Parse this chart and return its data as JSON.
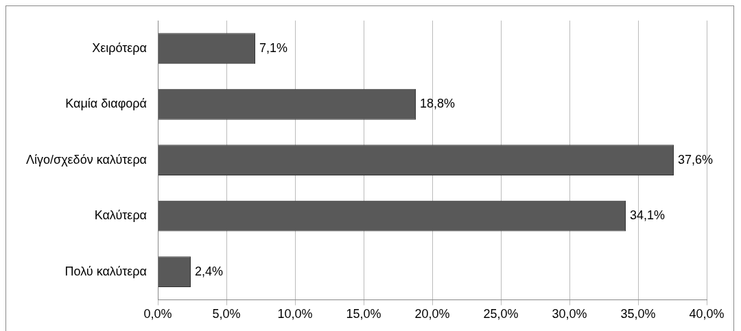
{
  "chart_data": {
    "type": "bar",
    "orientation": "horizontal",
    "categories": [
      "Χειρότερα",
      "Καμία διαφορά",
      "Λίγο/σχεδόν καλύτερα",
      "Καλύτερα",
      "Πολύ καλύτερα"
    ],
    "values": [
      7.1,
      18.8,
      37.6,
      34.1,
      2.4
    ],
    "value_labels": [
      "7,1%",
      "18,8%",
      "37,6%",
      "34,1%",
      "2,4%"
    ],
    "color": "#595959",
    "xlim": [
      0,
      40
    ],
    "xticks": [
      {
        "value": 0,
        "label": "0,0%"
      },
      {
        "value": 5,
        "label": "5,0%"
      },
      {
        "value": 10,
        "label": "10,0%"
      },
      {
        "value": 15,
        "label": "15,0%"
      },
      {
        "value": 20,
        "label": "20,0%"
      },
      {
        "value": 25,
        "label": "25,0%"
      },
      {
        "value": 30,
        "label": "30,0%"
      },
      {
        "value": 35,
        "label": "35,0%"
      },
      {
        "value": 40,
        "label": "40,0%"
      }
    ],
    "grid": "x",
    "legend": false
  }
}
